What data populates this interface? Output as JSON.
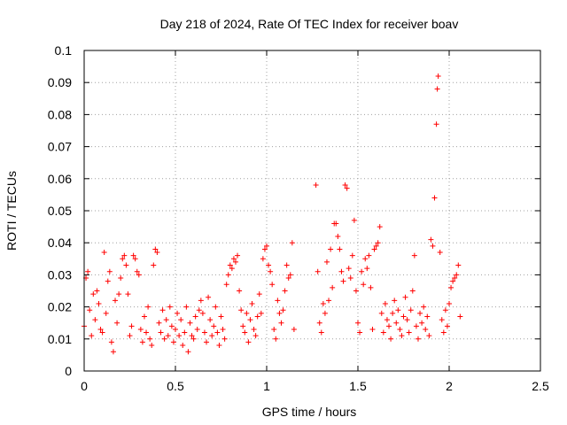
{
  "chart_data": {
    "type": "scatter",
    "title": "Day 218 of 2024, Rate Of TEC Index for receiver boav",
    "xlabel": "GPS time / hours",
    "ylabel": "ROTI / TECUs",
    "xlim": [
      0,
      2.5
    ],
    "ylim": [
      0,
      0.1
    ],
    "xticks": [
      "0",
      "0.5",
      "1",
      "1.5",
      "2",
      "2.5"
    ],
    "yticks": [
      "0",
      "0.01",
      "0.02",
      "0.03",
      "0.04",
      "0.05",
      "0.06",
      "0.07",
      "0.08",
      "0.09",
      "0.1"
    ],
    "grid": true,
    "marker": "+",
    "color": "#ff0000",
    "series": [
      {
        "points": [
          [
            0.0,
            0.014
          ],
          [
            0.01,
            0.029
          ],
          [
            0.02,
            0.031
          ],
          [
            0.03,
            0.019
          ],
          [
            0.04,
            0.011
          ],
          [
            0.05,
            0.024
          ],
          [
            0.06,
            0.016
          ],
          [
            0.07,
            0.025
          ],
          [
            0.08,
            0.021
          ],
          [
            0.09,
            0.013
          ],
          [
            0.1,
            0.012
          ],
          [
            0.11,
            0.037
          ],
          [
            0.12,
            0.018
          ],
          [
            0.13,
            0.028
          ],
          [
            0.14,
            0.031
          ],
          [
            0.15,
            0.009
          ],
          [
            0.16,
            0.006
          ],
          [
            0.17,
            0.022
          ],
          [
            0.18,
            0.015
          ],
          [
            0.19,
            0.024
          ],
          [
            0.2,
            0.029
          ],
          [
            0.21,
            0.035
          ],
          [
            0.22,
            0.036
          ],
          [
            0.23,
            0.033
          ],
          [
            0.24,
            0.024
          ],
          [
            0.25,
            0.011
          ],
          [
            0.26,
            0.014
          ],
          [
            0.27,
            0.036
          ],
          [
            0.28,
            0.035
          ],
          [
            0.29,
            0.031
          ],
          [
            0.3,
            0.03
          ],
          [
            0.31,
            0.013
          ],
          [
            0.32,
            0.009
          ],
          [
            0.33,
            0.017
          ],
          [
            0.34,
            0.012
          ],
          [
            0.35,
            0.02
          ],
          [
            0.36,
            0.01
          ],
          [
            0.37,
            0.008
          ],
          [
            0.38,
            0.033
          ],
          [
            0.39,
            0.038
          ],
          [
            0.4,
            0.037
          ],
          [
            0.41,
            0.015
          ],
          [
            0.42,
            0.012
          ],
          [
            0.43,
            0.019
          ],
          [
            0.44,
            0.01
          ],
          [
            0.45,
            0.016
          ],
          [
            0.46,
            0.011
          ],
          [
            0.47,
            0.02
          ],
          [
            0.48,
            0.014
          ],
          [
            0.49,
            0.009
          ],
          [
            0.5,
            0.013
          ],
          [
            0.51,
            0.018
          ],
          [
            0.52,
            0.011
          ],
          [
            0.53,
            0.016
          ],
          [
            0.54,
            0.008
          ],
          [
            0.55,
            0.012
          ],
          [
            0.56,
            0.02
          ],
          [
            0.57,
            0.006
          ],
          [
            0.58,
            0.015
          ],
          [
            0.59,
            0.011
          ],
          [
            0.6,
            0.01
          ],
          [
            0.61,
            0.017
          ],
          [
            0.62,
            0.013
          ],
          [
            0.63,
            0.019
          ],
          [
            0.64,
            0.022
          ],
          [
            0.65,
            0.018
          ],
          [
            0.66,
            0.012
          ],
          [
            0.67,
            0.009
          ],
          [
            0.68,
            0.023
          ],
          [
            0.69,
            0.016
          ],
          [
            0.7,
            0.011
          ],
          [
            0.71,
            0.014
          ],
          [
            0.72,
            0.02
          ],
          [
            0.73,
            0.012
          ],
          [
            0.74,
            0.008
          ],
          [
            0.75,
            0.017
          ],
          [
            0.76,
            0.013
          ],
          [
            0.77,
            0.01
          ],
          [
            0.78,
            0.027
          ],
          [
            0.79,
            0.03
          ],
          [
            0.8,
            0.033
          ],
          [
            0.81,
            0.032
          ],
          [
            0.82,
            0.035
          ],
          [
            0.83,
            0.034
          ],
          [
            0.84,
            0.036
          ],
          [
            0.85,
            0.025
          ],
          [
            0.86,
            0.019
          ],
          [
            0.87,
            0.014
          ],
          [
            0.88,
            0.012
          ],
          [
            0.89,
            0.018
          ],
          [
            0.9,
            0.009
          ],
          [
            0.91,
            0.016
          ],
          [
            0.92,
            0.021
          ],
          [
            0.93,
            0.013
          ],
          [
            0.94,
            0.011
          ],
          [
            0.95,
            0.017
          ],
          [
            0.96,
            0.024
          ],
          [
            0.97,
            0.018
          ],
          [
            0.98,
            0.035
          ],
          [
            0.99,
            0.038
          ],
          [
            1.0,
            0.039
          ],
          [
            1.01,
            0.033
          ],
          [
            1.02,
            0.031
          ],
          [
            1.03,
            0.027
          ],
          [
            1.04,
            0.013
          ],
          [
            1.05,
            0.01
          ],
          [
            1.06,
            0.022
          ],
          [
            1.07,
            0.018
          ],
          [
            1.08,
            0.015
          ],
          [
            1.09,
            0.019
          ],
          [
            1.1,
            0.025
          ],
          [
            1.11,
            0.033
          ],
          [
            1.12,
            0.029
          ],
          [
            1.13,
            0.03
          ],
          [
            1.14,
            0.04
          ],
          [
            1.15,
            0.013
          ],
          [
            1.27,
            0.058
          ],
          [
            1.28,
            0.031
          ],
          [
            1.29,
            0.015
          ],
          [
            1.3,
            0.012
          ],
          [
            1.31,
            0.021
          ],
          [
            1.32,
            0.018
          ],
          [
            1.33,
            0.034
          ],
          [
            1.34,
            0.022
          ],
          [
            1.35,
            0.038
          ],
          [
            1.36,
            0.026
          ],
          [
            1.37,
            0.046
          ],
          [
            1.38,
            0.046
          ],
          [
            1.39,
            0.042
          ],
          [
            1.4,
            0.038
          ],
          [
            1.41,
            0.031
          ],
          [
            1.42,
            0.028
          ],
          [
            1.43,
            0.058
          ],
          [
            1.44,
            0.057
          ],
          [
            1.45,
            0.032
          ],
          [
            1.46,
            0.029
          ],
          [
            1.47,
            0.036
          ],
          [
            1.48,
            0.047
          ],
          [
            1.49,
            0.025
          ],
          [
            1.5,
            0.015
          ],
          [
            1.51,
            0.012
          ],
          [
            1.52,
            0.031
          ],
          [
            1.53,
            0.027
          ],
          [
            1.54,
            0.035
          ],
          [
            1.55,
            0.032
          ],
          [
            1.56,
            0.036
          ],
          [
            1.57,
            0.026
          ],
          [
            1.58,
            0.013
          ],
          [
            1.59,
            0.038
          ],
          [
            1.6,
            0.039
          ],
          [
            1.61,
            0.04
          ],
          [
            1.62,
            0.045
          ],
          [
            1.63,
            0.018
          ],
          [
            1.64,
            0.012
          ],
          [
            1.65,
            0.021
          ],
          [
            1.66,
            0.016
          ],
          [
            1.67,
            0.014
          ],
          [
            1.68,
            0.01
          ],
          [
            1.69,
            0.018
          ],
          [
            1.7,
            0.022
          ],
          [
            1.71,
            0.015
          ],
          [
            1.72,
            0.019
          ],
          [
            1.73,
            0.013
          ],
          [
            1.74,
            0.011
          ],
          [
            1.75,
            0.017
          ],
          [
            1.76,
            0.023
          ],
          [
            1.77,
            0.016
          ],
          [
            1.78,
            0.012
          ],
          [
            1.79,
            0.019
          ],
          [
            1.8,
            0.025
          ],
          [
            1.81,
            0.036
          ],
          [
            1.82,
            0.014
          ],
          [
            1.83,
            0.01
          ],
          [
            1.84,
            0.018
          ],
          [
            1.85,
            0.015
          ],
          [
            1.86,
            0.02
          ],
          [
            1.87,
            0.013
          ],
          [
            1.88,
            0.017
          ],
          [
            1.89,
            0.011
          ],
          [
            1.9,
            0.041
          ],
          [
            1.91,
            0.039
          ],
          [
            1.92,
            0.054
          ],
          [
            1.93,
            0.077
          ],
          [
            1.935,
            0.088
          ],
          [
            1.94,
            0.092
          ],
          [
            1.95,
            0.037
          ],
          [
            1.96,
            0.016
          ],
          [
            1.97,
            0.012
          ],
          [
            1.98,
            0.019
          ],
          [
            1.99,
            0.014
          ],
          [
            2.0,
            0.021
          ],
          [
            2.01,
            0.026
          ],
          [
            2.02,
            0.028
          ],
          [
            2.03,
            0.029
          ],
          [
            2.04,
            0.03
          ],
          [
            2.05,
            0.033
          ],
          [
            2.06,
            0.017
          ]
        ]
      }
    ]
  }
}
